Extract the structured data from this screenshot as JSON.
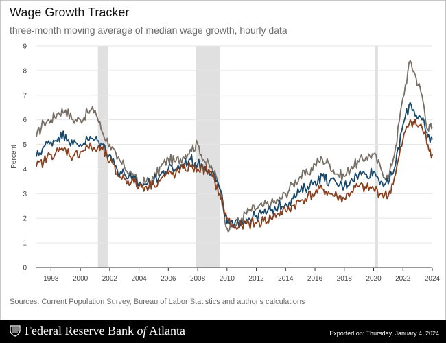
{
  "header": {
    "title": "Wage Growth Tracker",
    "subtitle": "three-month moving average of median wage growth, hourly data"
  },
  "footer": {
    "sources": "Sources: Current Population Survey, Bureau of Labor Statistics and author's calculations",
    "org_prefix": "Federal Reserve Bank ",
    "org_of": "of",
    "org_suffix": " Atlanta",
    "exported": "Exported on: Thursday, January 4, 2024"
  },
  "colors": {
    "series_gray": "#786f66",
    "series_blue": "#19496b",
    "series_orange": "#8a3f1c",
    "recession": "#e0e0e0",
    "grid": "#e6e6e6"
  },
  "chart_data": {
    "type": "line",
    "ylabel": "Percent",
    "xlabel": "",
    "ylim": [
      0,
      9
    ],
    "xlim": [
      1997.0,
      2024.0
    ],
    "yticks": [
      "0",
      "1",
      "2",
      "3",
      "4",
      "5",
      "6",
      "7",
      "8",
      "9"
    ],
    "xticks": [
      "1998",
      "2000",
      "2002",
      "2004",
      "2006",
      "2008",
      "2010",
      "2012",
      "2014",
      "2016",
      "2018",
      "2020",
      "2022",
      "2024"
    ],
    "grid": true,
    "legend": "none",
    "recessions": [
      [
        2001.2,
        2001.9
      ],
      [
        2007.9,
        2009.5
      ],
      [
        2020.1,
        2020.3
      ]
    ],
    "series": [
      {
        "color": "#786f66",
        "x": [
          1997.0,
          1997.5,
          1998.0,
          1998.5,
          1999.0,
          1999.5,
          2000.0,
          2000.5,
          2001.0,
          2001.5,
          2002.0,
          2002.5,
          2003.0,
          2003.5,
          2004.0,
          2004.5,
          2005.0,
          2005.5,
          2006.0,
          2006.5,
          2007.0,
          2007.5,
          2008.0,
          2008.5,
          2009.0,
          2009.5,
          2010.0,
          2010.5,
          2011.0,
          2011.5,
          2012.0,
          2012.5,
          2013.0,
          2013.5,
          2014.0,
          2014.5,
          2015.0,
          2015.5,
          2016.0,
          2016.5,
          2017.0,
          2017.5,
          2018.0,
          2018.5,
          2019.0,
          2019.5,
          2020.0,
          2020.5,
          2021.0,
          2021.5,
          2022.0,
          2022.5,
          2022.9,
          2023.3,
          2023.7,
          2024.0
        ],
        "y": [
          5.3,
          5.9,
          6.0,
          6.3,
          6.4,
          6.0,
          6.0,
          6.3,
          6.4,
          5.5,
          5.0,
          4.4,
          4.1,
          3.8,
          3.4,
          3.5,
          3.6,
          4.1,
          4.4,
          4.3,
          4.5,
          4.8,
          5.0,
          4.3,
          4.0,
          3.3,
          1.6,
          1.7,
          2.0,
          2.3,
          2.4,
          2.5,
          2.6,
          2.7,
          3.0,
          3.4,
          3.7,
          3.8,
          4.2,
          4.4,
          4.2,
          3.8,
          3.7,
          4.1,
          4.3,
          4.5,
          4.6,
          4.0,
          3.6,
          4.9,
          6.9,
          8.4,
          7.7,
          7.0,
          5.6,
          5.7
        ]
      },
      {
        "color": "#19496b",
        "x": [
          1997.0,
          1997.5,
          1998.0,
          1998.5,
          1999.0,
          1999.5,
          2000.0,
          2000.5,
          2001.0,
          2001.5,
          2002.0,
          2002.5,
          2003.0,
          2003.5,
          2004.0,
          2004.5,
          2005.0,
          2005.5,
          2006.0,
          2006.5,
          2007.0,
          2007.5,
          2008.0,
          2008.5,
          2009.0,
          2009.5,
          2010.0,
          2010.5,
          2011.0,
          2011.5,
          2012.0,
          2012.5,
          2013.0,
          2013.5,
          2014.0,
          2014.5,
          2015.0,
          2015.5,
          2016.0,
          2016.5,
          2017.0,
          2017.5,
          2018.0,
          2018.5,
          2019.0,
          2019.5,
          2020.0,
          2020.5,
          2021.0,
          2021.5,
          2022.0,
          2022.5,
          2022.9,
          2023.3,
          2023.7,
          2024.0
        ],
        "y": [
          4.5,
          4.9,
          5.1,
          5.3,
          5.4,
          5.0,
          5.0,
          5.2,
          5.2,
          5.0,
          4.6,
          4.0,
          3.8,
          3.6,
          3.4,
          3.4,
          3.5,
          3.8,
          4.0,
          4.0,
          4.2,
          4.4,
          4.2,
          4.1,
          3.9,
          3.2,
          1.8,
          1.7,
          1.9,
          2.0,
          2.1,
          2.2,
          2.3,
          2.5,
          2.6,
          2.8,
          3.1,
          3.3,
          3.5,
          3.7,
          3.5,
          3.4,
          3.3,
          3.6,
          3.8,
          3.8,
          3.9,
          3.5,
          3.4,
          4.2,
          5.8,
          6.7,
          6.2,
          6.0,
          5.3,
          5.2
        ]
      },
      {
        "color": "#8a3f1c",
        "x": [
          1997.0,
          1997.5,
          1998.0,
          1998.5,
          1999.0,
          1999.5,
          2000.0,
          2000.5,
          2001.0,
          2001.5,
          2002.0,
          2002.5,
          2003.0,
          2003.5,
          2004.0,
          2004.5,
          2005.0,
          2005.5,
          2006.0,
          2006.5,
          2007.0,
          2007.5,
          2008.0,
          2008.5,
          2009.0,
          2009.5,
          2010.0,
          2010.5,
          2011.0,
          2011.5,
          2012.0,
          2012.5,
          2013.0,
          2013.5,
          2014.0,
          2014.5,
          2015.0,
          2015.5,
          2016.0,
          2016.5,
          2017.0,
          2017.5,
          2018.0,
          2018.5,
          2019.0,
          2019.5,
          2020.0,
          2020.5,
          2021.0,
          2021.5,
          2022.0,
          2022.5,
          2022.9,
          2023.3,
          2023.7,
          2024.0
        ],
        "y": [
          4.1,
          4.3,
          4.6,
          4.7,
          4.8,
          4.5,
          4.7,
          4.9,
          4.8,
          4.8,
          4.3,
          3.8,
          3.6,
          3.5,
          3.3,
          3.3,
          3.4,
          3.6,
          3.8,
          3.8,
          4.0,
          4.1,
          4.0,
          4.0,
          3.7,
          3.0,
          2.0,
          1.6,
          1.7,
          1.8,
          1.8,
          1.9,
          2.0,
          2.2,
          2.3,
          2.5,
          2.7,
          2.9,
          3.0,
          3.2,
          3.0,
          2.9,
          2.8,
          3.1,
          3.3,
          3.2,
          3.2,
          3.0,
          2.9,
          3.8,
          5.2,
          6.0,
          5.8,
          5.7,
          5.0,
          4.6
        ]
      }
    ]
  }
}
